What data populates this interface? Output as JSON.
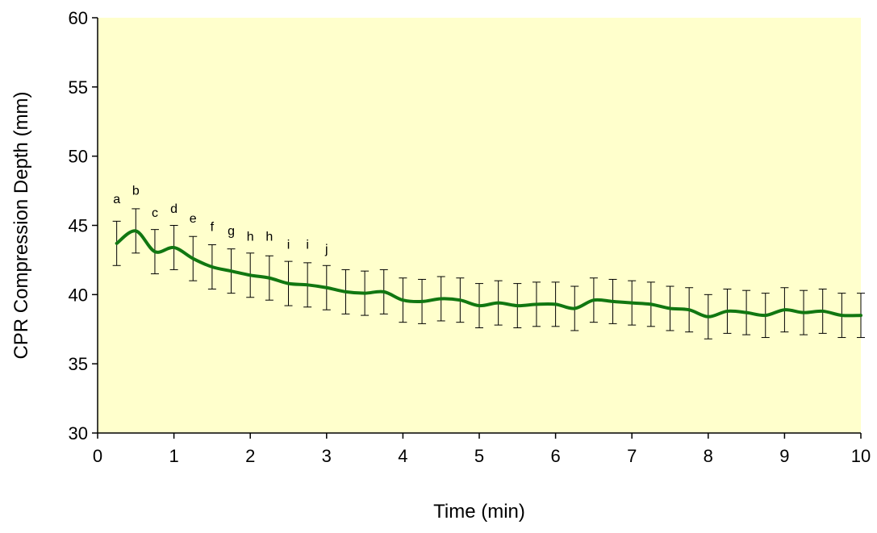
{
  "chart_data": {
    "type": "line",
    "title": "",
    "xlabel": "Time (min)",
    "ylabel": "CPR Compression Depth (mm)",
    "xlim": [
      0,
      10
    ],
    "ylim": [
      30,
      60
    ],
    "xticks": [
      0,
      1,
      2,
      3,
      4,
      5,
      6,
      7,
      8,
      9,
      10
    ],
    "yticks": [
      30,
      35,
      40,
      45,
      50,
      55,
      60
    ],
    "grid": false,
    "legend": "none",
    "plot_background": "#FFFFCC",
    "line_color": "#117711",
    "series": [
      {
        "x": [
          0.25,
          0.5,
          0.75,
          1.0,
          1.25,
          1.5,
          1.75,
          2.0,
          2.25,
          2.5,
          2.75,
          3.0,
          3.25,
          3.5,
          3.75,
          4.0,
          4.25,
          4.5,
          4.75,
          5.0,
          5.25,
          5.5,
          5.75,
          6.0,
          6.25,
          6.5,
          6.75,
          7.0,
          7.25,
          7.5,
          7.75,
          8.0,
          8.25,
          8.5,
          8.75,
          9.0,
          9.25,
          9.5,
          9.75,
          10.0
        ],
        "y": [
          43.7,
          44.6,
          43.1,
          43.4,
          42.6,
          42.0,
          41.7,
          41.4,
          41.2,
          40.8,
          40.7,
          40.5,
          40.2,
          40.1,
          40.2,
          39.6,
          39.5,
          39.7,
          39.6,
          39.2,
          39.4,
          39.2,
          39.3,
          39.3,
          39.0,
          39.6,
          39.5,
          39.4,
          39.3,
          39.0,
          38.9,
          38.4,
          38.8,
          38.7,
          38.5,
          38.9,
          38.7,
          38.8,
          38.5,
          38.5
        ],
        "error": [
          1.6,
          1.6,
          1.6,
          1.6,
          1.6,
          1.6,
          1.6,
          1.6,
          1.6,
          1.6,
          1.6,
          1.6,
          1.6,
          1.6,
          1.6,
          1.6,
          1.6,
          1.6,
          1.6,
          1.6,
          1.6,
          1.6,
          1.6,
          1.6,
          1.6,
          1.6,
          1.6,
          1.6,
          1.6,
          1.6,
          1.6,
          1.6,
          1.6,
          1.6,
          1.6,
          1.6,
          1.6,
          1.6,
          1.6,
          1.6
        ]
      }
    ],
    "annotations": [
      {
        "x": 0.25,
        "y": 46.6,
        "text": "a"
      },
      {
        "x": 0.5,
        "y": 47.2,
        "text": "b"
      },
      {
        "x": 0.75,
        "y": 45.6,
        "text": "c"
      },
      {
        "x": 1.0,
        "y": 45.9,
        "text": "d"
      },
      {
        "x": 1.25,
        "y": 45.2,
        "text": "e"
      },
      {
        "x": 1.5,
        "y": 44.6,
        "text": "f"
      },
      {
        "x": 1.75,
        "y": 44.3,
        "text": "g"
      },
      {
        "x": 2.0,
        "y": 43.9,
        "text": "h"
      },
      {
        "x": 2.25,
        "y": 43.9,
        "text": "h"
      },
      {
        "x": 2.5,
        "y": 43.3,
        "text": "i"
      },
      {
        "x": 2.75,
        "y": 43.3,
        "text": "i"
      },
      {
        "x": 3.0,
        "y": 43.0,
        "text": "j"
      }
    ]
  }
}
